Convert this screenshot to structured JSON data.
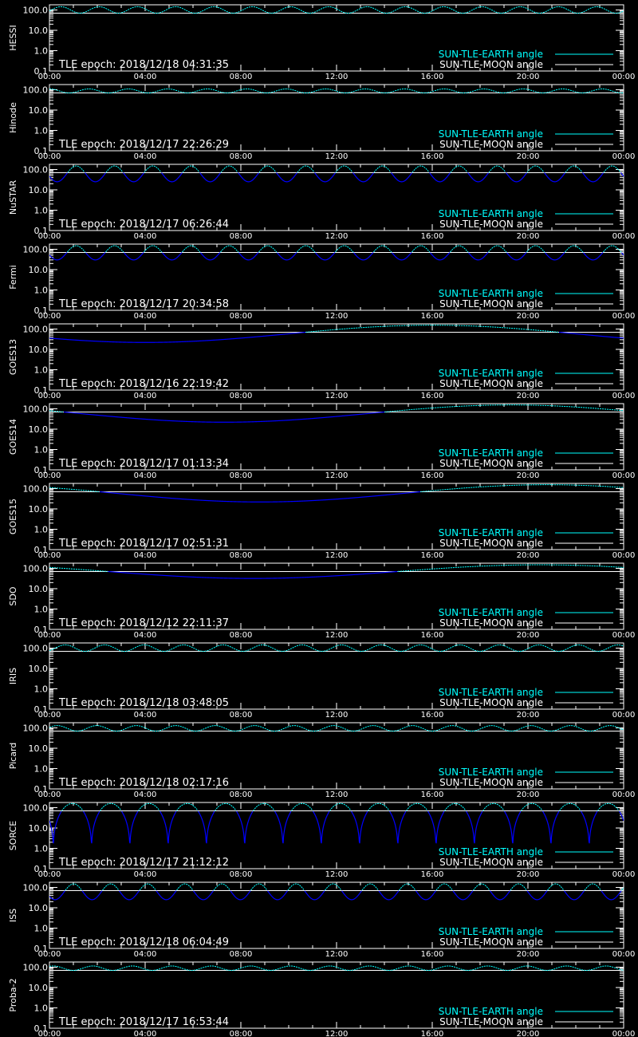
{
  "colors": {
    "background": "#000000",
    "axis": "#ffffff",
    "earth_curve": "#00ffff",
    "moon_curve": "#ffffff",
    "dip_curve": "#0000ff"
  },
  "legend": {
    "earth": "SUN-TLE-EARTH angle",
    "moon": "SUN-TLE-MOON angle"
  },
  "chart_data": [
    {
      "type": "line",
      "ylabel": "HESSI",
      "annotation": "TLE epoch: 2018/12/18 04:31:35",
      "x_ticks": [
        "00:00",
        "04:00",
        "08:00",
        "12:00",
        "16:00",
        "20:00",
        "00:00"
      ],
      "y_ticks": [
        "100.0",
        "10.0",
        "1.0",
        "0.1"
      ],
      "ylim": [
        0.1,
        180
      ],
      "y_scale": "log",
      "xlim": [
        0,
        24
      ],
      "earth": {
        "kind": "periodic",
        "period": 1.6,
        "phase": 0.2,
        "max": 145,
        "min": 70
      },
      "moon": {
        "kind": "flat",
        "value": 70
      },
      "legend_placement": "bottom-right"
    },
    {
      "type": "line",
      "ylabel": "Hinode",
      "annotation": "TLE epoch: 2018/12/17 22:26:29",
      "x_ticks": [
        "00:00",
        "04:00",
        "08:00",
        "12:00",
        "16:00",
        "20:00",
        "00:00"
      ],
      "y_ticks": [
        "100.0",
        "10.0",
        "1.0",
        "0.1"
      ],
      "ylim": [
        0.1,
        180
      ],
      "y_scale": "log",
      "xlim": [
        0,
        24
      ],
      "earth": {
        "kind": "periodic",
        "period": 1.65,
        "phase": 0.5,
        "max": 110,
        "min": 70
      },
      "moon": {
        "kind": "flat",
        "value": 70
      },
      "legend_placement": "bottom-right"
    },
    {
      "type": "line",
      "ylabel": "NuSTAR",
      "annotation": "TLE epoch: 2018/12/17 06:26:44",
      "x_ticks": [
        "00:00",
        "04:00",
        "08:00",
        "12:00",
        "16:00",
        "20:00",
        "00:00"
      ],
      "y_ticks": [
        "100.0",
        "10.0",
        "1.0",
        "0.1"
      ],
      "ylim": [
        0.1,
        180
      ],
      "y_scale": "log",
      "xlim": [
        0,
        24
      ],
      "earth": {
        "kind": "periodic",
        "period": 1.6,
        "phase": 0.8,
        "max": 150,
        "min": 25
      },
      "moon": {
        "kind": "flat",
        "value": 70
      },
      "legend_placement": "bottom-right"
    },
    {
      "type": "line",
      "ylabel": "Fermi",
      "annotation": "TLE epoch: 2018/12/17 20:34:58",
      "x_ticks": [
        "00:00",
        "04:00",
        "08:00",
        "12:00",
        "16:00",
        "20:00",
        "00:00"
      ],
      "y_ticks": [
        "100.0",
        "10.0",
        "1.0",
        "0.1"
      ],
      "ylim": [
        0.1,
        180
      ],
      "y_scale": "log",
      "xlim": [
        0,
        24
      ],
      "earth": {
        "kind": "periodic",
        "period": 1.6,
        "phase": 0.8,
        "max": 150,
        "min": 30
      },
      "moon": {
        "kind": "flat",
        "value": 70
      },
      "legend_placement": "bottom-right"
    },
    {
      "type": "line",
      "ylabel": "GOES13",
      "annotation": "TLE epoch: 2018/12/16 22:19:42",
      "x_ticks": [
        "00:00",
        "04:00",
        "08:00",
        "12:00",
        "16:00",
        "20:00",
        "00:00"
      ],
      "y_ticks": [
        "100.0",
        "10.0",
        "1.0",
        "0.1"
      ],
      "ylim": [
        0.1,
        180
      ],
      "y_scale": "log",
      "xlim": [
        0,
        24
      ],
      "earth": {
        "kind": "daily",
        "min_at": 4.0,
        "max": 155,
        "min": 22
      },
      "moon": {
        "kind": "flat",
        "value": 70
      },
      "legend_placement": "bottom-right"
    },
    {
      "type": "line",
      "ylabel": "GOES14",
      "annotation": "TLE epoch: 2018/12/17 01:13:34",
      "x_ticks": [
        "00:00",
        "04:00",
        "08:00",
        "12:00",
        "16:00",
        "20:00",
        "00:00"
      ],
      "y_ticks": [
        "100.0",
        "10.0",
        "1.0",
        "0.1"
      ],
      "ylim": [
        0.1,
        180
      ],
      "y_scale": "log",
      "xlim": [
        0,
        24
      ],
      "earth": {
        "kind": "daily",
        "min_at": 7.3,
        "max": 155,
        "min": 22
      },
      "moon": {
        "kind": "flat",
        "value": 70
      },
      "legend_placement": "bottom-right"
    },
    {
      "type": "line",
      "ylabel": "GOES15",
      "annotation": "TLE epoch: 2018/12/17 02:51:31",
      "x_ticks": [
        "00:00",
        "04:00",
        "08:00",
        "12:00",
        "16:00",
        "20:00",
        "00:00"
      ],
      "y_ticks": [
        "100.0",
        "10.0",
        "1.0",
        "0.1"
      ],
      "ylim": [
        0.1,
        180
      ],
      "y_scale": "log",
      "xlim": [
        0,
        24
      ],
      "earth": {
        "kind": "daily",
        "min_at": 8.8,
        "max": 155,
        "min": 22
      },
      "moon": {
        "kind": "flat",
        "value": 70
      },
      "legend_placement": "bottom-right"
    },
    {
      "type": "line",
      "ylabel": "SDO",
      "annotation": "TLE epoch: 2018/12/12 22:11:37",
      "x_ticks": [
        "00:00",
        "04:00",
        "08:00",
        "12:00",
        "16:00",
        "20:00",
        "00:00"
      ],
      "y_ticks": [
        "100.0",
        "10.0",
        "1.0",
        "0.1"
      ],
      "ylim": [
        0.1,
        180
      ],
      "y_scale": "log",
      "xlim": [
        0,
        24
      ],
      "earth": {
        "kind": "daily",
        "min_at": 8.5,
        "max": 150,
        "min": 32
      },
      "moon": {
        "kind": "flat",
        "value": 70
      },
      "legend_placement": "bottom-right"
    },
    {
      "type": "line",
      "ylabel": "IRIS",
      "annotation": "TLE epoch: 2018/12/18 03:48:05",
      "x_ticks": [
        "00:00",
        "04:00",
        "08:00",
        "12:00",
        "16:00",
        "20:00",
        "00:00"
      ],
      "y_ticks": [
        "100.0",
        "10.0",
        "1.0",
        "0.1"
      ],
      "ylim": [
        0.1,
        180
      ],
      "y_scale": "log",
      "xlim": [
        0,
        24
      ],
      "earth": {
        "kind": "periodic",
        "period": 1.65,
        "phase": 0.1,
        "max": 145,
        "min": 70
      },
      "moon": {
        "kind": "flat",
        "value": 70
      },
      "legend_placement": "bottom-right"
    },
    {
      "type": "line",
      "ylabel": "Picard",
      "annotation": "TLE epoch: 2018/12/18 02:17:16",
      "x_ticks": [
        "00:00",
        "04:00",
        "08:00",
        "12:00",
        "16:00",
        "20:00",
        "00:00"
      ],
      "y_ticks": [
        "100.0",
        "10.0",
        "1.0",
        "0.1"
      ],
      "ylim": [
        0.1,
        180
      ],
      "y_scale": "log",
      "xlim": [
        0,
        24
      ],
      "earth": {
        "kind": "periodic",
        "period": 1.65,
        "phase": 0.3,
        "max": 130,
        "min": 70
      },
      "moon": {
        "kind": "flat",
        "value": 70
      },
      "legend_placement": "bottom-right"
    },
    {
      "type": "line",
      "ylabel": "SORCE",
      "annotation": "TLE epoch: 2018/12/17 21:12:12",
      "x_ticks": [
        "00:00",
        "04:00",
        "08:00",
        "12:00",
        "16:00",
        "20:00",
        "00:00"
      ],
      "y_ticks": [
        "100.0",
        "10.0",
        "1.0",
        "0.1"
      ],
      "ylim": [
        0.1,
        180
      ],
      "y_scale": "log",
      "xlim": [
        0,
        24
      ],
      "earth": {
        "kind": "cusp",
        "period": 1.6,
        "phase": 0.9,
        "max": 160,
        "min": 0.5
      },
      "moon": {
        "kind": "flat",
        "value": 70
      },
      "legend_placement": "bottom-right"
    },
    {
      "type": "line",
      "ylabel": "ISS",
      "annotation": "TLE epoch: 2018/12/18 06:04:49",
      "x_ticks": [
        "00:00",
        "04:00",
        "08:00",
        "12:00",
        "16:00",
        "20:00",
        "00:00"
      ],
      "y_ticks": [
        "100.0",
        "10.0",
        "1.0",
        "0.1"
      ],
      "ylim": [
        0.1,
        180
      ],
      "y_scale": "log",
      "xlim": [
        0,
        24
      ],
      "earth": {
        "kind": "periodic",
        "period": 1.55,
        "phase": 0.85,
        "max": 150,
        "min": 25
      },
      "moon": {
        "kind": "flat",
        "value": 70
      },
      "legend_placement": "bottom-right"
    },
    {
      "type": "line",
      "ylabel": "Proba-2",
      "annotation": "TLE epoch: 2018/12/17 16:53:44",
      "x_ticks": [
        "00:00",
        "04:00",
        "08:00",
        "12:00",
        "16:00",
        "20:00",
        "00:00"
      ],
      "y_ticks": [
        "100.0",
        "10.0",
        "1.0",
        "0.1"
      ],
      "ylim": [
        0.1,
        180
      ],
      "y_scale": "log",
      "xlim": [
        0,
        24
      ],
      "earth": {
        "kind": "periodic",
        "period": 1.65,
        "phase": 0.4,
        "max": 115,
        "min": 70
      },
      "moon": {
        "kind": "flat",
        "value": 70
      },
      "legend_placement": "bottom-right"
    }
  ]
}
